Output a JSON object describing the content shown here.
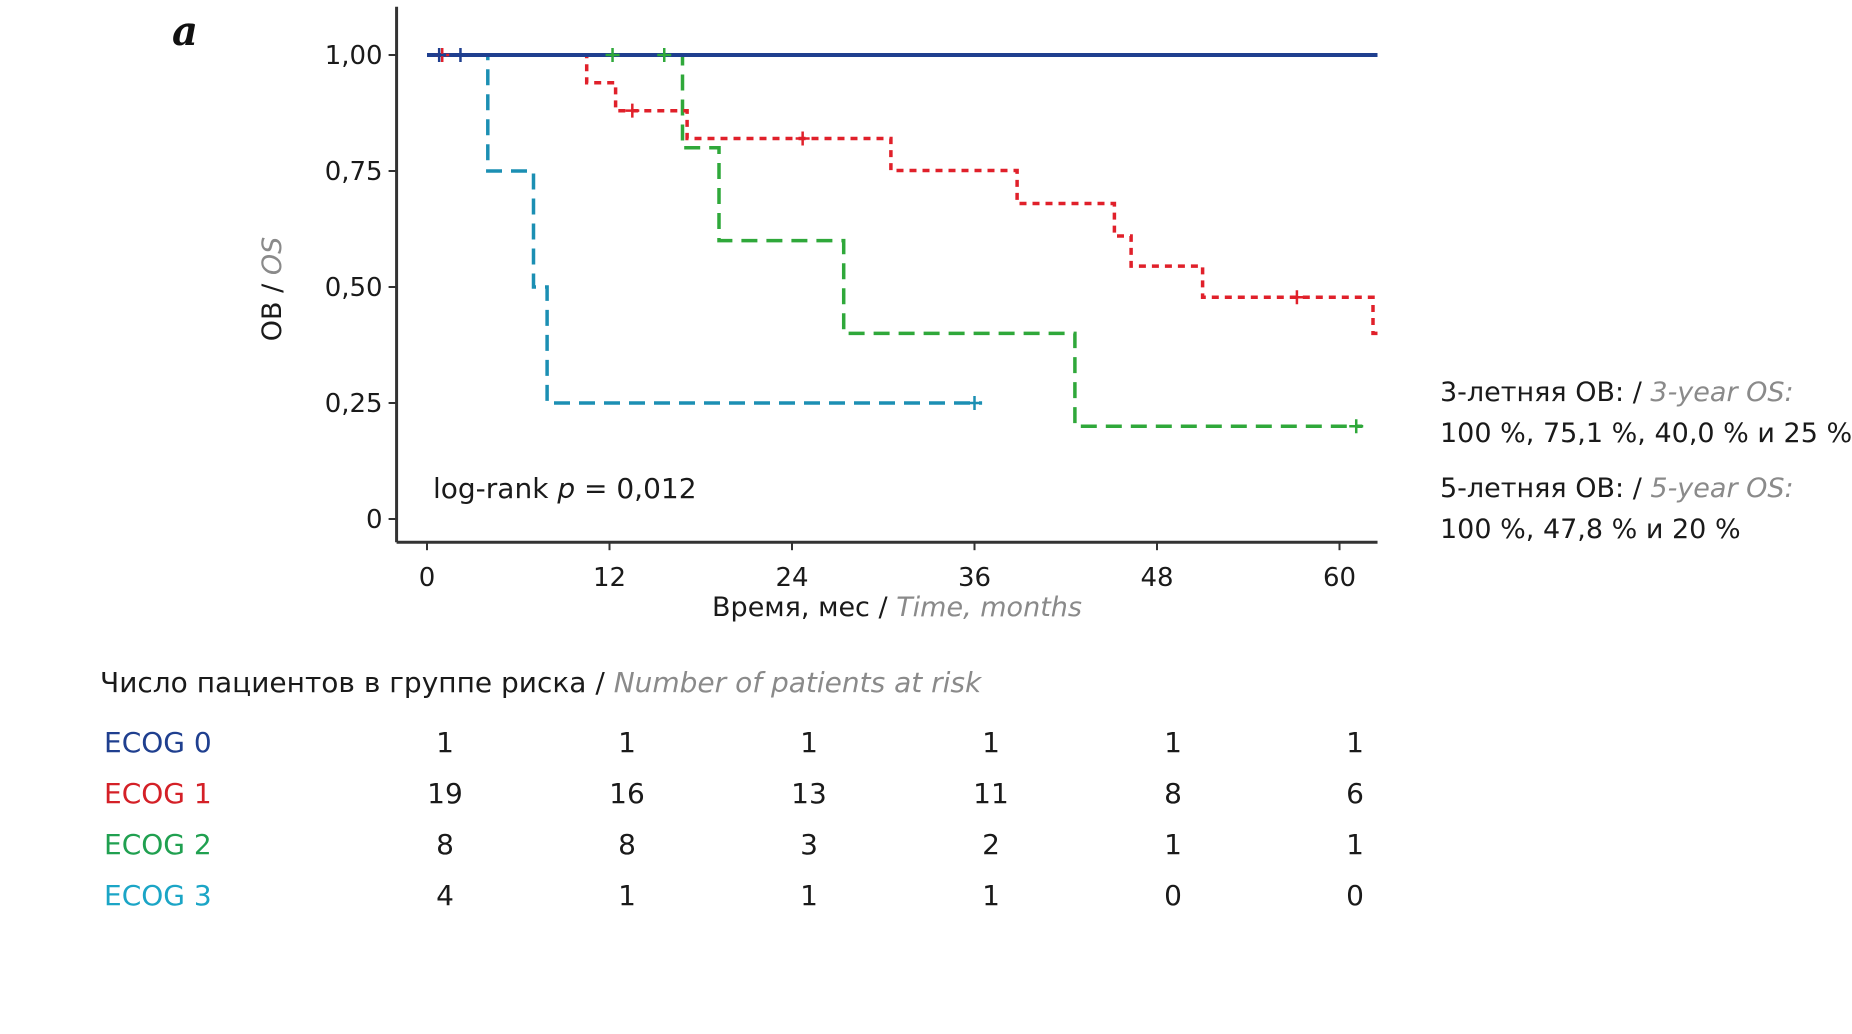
{
  "panel_label": "a",
  "side_notes": {
    "three_year_label": "3-летняя ОВ: /",
    "three_year_label_en": "3-year OS:",
    "three_year_values": "100 %, 75,1 %, 40,0 % и 25 %",
    "five_year_label": "5-летняя ОВ: /",
    "five_year_label_en": "5-year OS:",
    "five_year_values": "100 %, 47,8 % и 20 %"
  },
  "risk_table": {
    "title": "Число пациентов в группе риска /",
    "title_en": "Number of patients at risk",
    "rows": [
      {
        "name": "ECOG 0",
        "color": "#1f3f8f",
        "values": [
          "1",
          "1",
          "1",
          "1",
          "1",
          "1"
        ]
      },
      {
        "name": "ECOG 1",
        "color": "#d42027",
        "values": [
          "19",
          "16",
          "13",
          "11",
          "8",
          "6"
        ]
      },
      {
        "name": "ECOG 2",
        "color": "#20a050",
        "values": [
          "8",
          "8",
          "3",
          "2",
          "1",
          "1"
        ]
      },
      {
        "name": "ECOG 3",
        "color": "#1ba5c6",
        "values": [
          "4",
          "1",
          "1",
          "1",
          "0",
          "0"
        ]
      }
    ]
  },
  "chart_data": {
    "type": "line",
    "subtype": "kaplan-meier step",
    "xlabel": "Время, мес /",
    "xlabel_en": "Time, months",
    "ylabel": "ОВ /",
    "ylabel_en": "OS",
    "xlim": [
      -2,
      62.5
    ],
    "ylim": [
      -0.05,
      1.05
    ],
    "x_ticks": [
      0,
      12,
      24,
      36,
      48,
      60
    ],
    "x_tick_labels": [
      "0",
      "12",
      "24",
      "36",
      "48",
      "60"
    ],
    "y_ticks": [
      1.0,
      0.75,
      0.5,
      0.25,
      0
    ],
    "y_tick_labels": [
      "1,00",
      "0,75",
      "0,50",
      "0,25",
      "0"
    ],
    "annotation": {
      "prefix": "log-rank ",
      "italic": "p",
      "suffix": " = 0,012"
    },
    "series": [
      {
        "name": "ECOG 0",
        "color": "#1f3f8f",
        "dash": "solid",
        "steps": [
          [
            0,
            1.0
          ],
          [
            62.5,
            1.0
          ]
        ],
        "censors": [
          [
            0.8,
            1.0
          ],
          [
            2.2,
            1.0
          ]
        ]
      },
      {
        "name": "ECOG 1",
        "color": "#e0202a",
        "dash": "dotted",
        "steps": [
          [
            0,
            1.0
          ],
          [
            10.5,
            1.0
          ],
          [
            10.5,
            0.94
          ],
          [
            12.4,
            0.94
          ],
          [
            12.4,
            0.88
          ],
          [
            17.1,
            0.88
          ],
          [
            17.1,
            0.82
          ],
          [
            30.5,
            0.82
          ],
          [
            30.5,
            0.751
          ],
          [
            38.8,
            0.751
          ],
          [
            38.8,
            0.68
          ],
          [
            45.2,
            0.68
          ],
          [
            45.2,
            0.61
          ],
          [
            46.3,
            0.61
          ],
          [
            46.3,
            0.545
          ],
          [
            51.0,
            0.545
          ],
          [
            51.0,
            0.478
          ],
          [
            62.2,
            0.478
          ],
          [
            62.2,
            0.4
          ],
          [
            62.5,
            0.4
          ]
        ],
        "censors": [
          [
            1.0,
            1.0
          ],
          [
            13.5,
            0.88
          ],
          [
            24.7,
            0.82
          ],
          [
            57.2,
            0.478
          ]
        ]
      },
      {
        "name": "ECOG 2",
        "color": "#2fa83a",
        "dash": "dashed",
        "steps": [
          [
            0,
            1.0
          ],
          [
            16.8,
            1.0
          ],
          [
            16.8,
            0.8
          ],
          [
            19.2,
            0.8
          ],
          [
            19.2,
            0.6
          ],
          [
            27.4,
            0.6
          ],
          [
            27.4,
            0.4
          ],
          [
            42.6,
            0.4
          ],
          [
            42.6,
            0.2
          ],
          [
            61.5,
            0.2
          ]
        ],
        "censors": [
          [
            12.2,
            1.0
          ],
          [
            15.6,
            1.0
          ],
          [
            61.1,
            0.2
          ]
        ]
      },
      {
        "name": "ECOG 3",
        "color": "#1b8fb3",
        "dash": "dashed",
        "steps": [
          [
            0,
            1.0
          ],
          [
            4.0,
            1.0
          ],
          [
            4.0,
            0.75
          ],
          [
            7.0,
            0.75
          ],
          [
            7.0,
            0.5
          ],
          [
            7.9,
            0.5
          ],
          [
            7.9,
            0.25
          ],
          [
            36.5,
            0.25
          ]
        ],
        "censors": [
          [
            36.0,
            0.25
          ]
        ]
      }
    ]
  }
}
